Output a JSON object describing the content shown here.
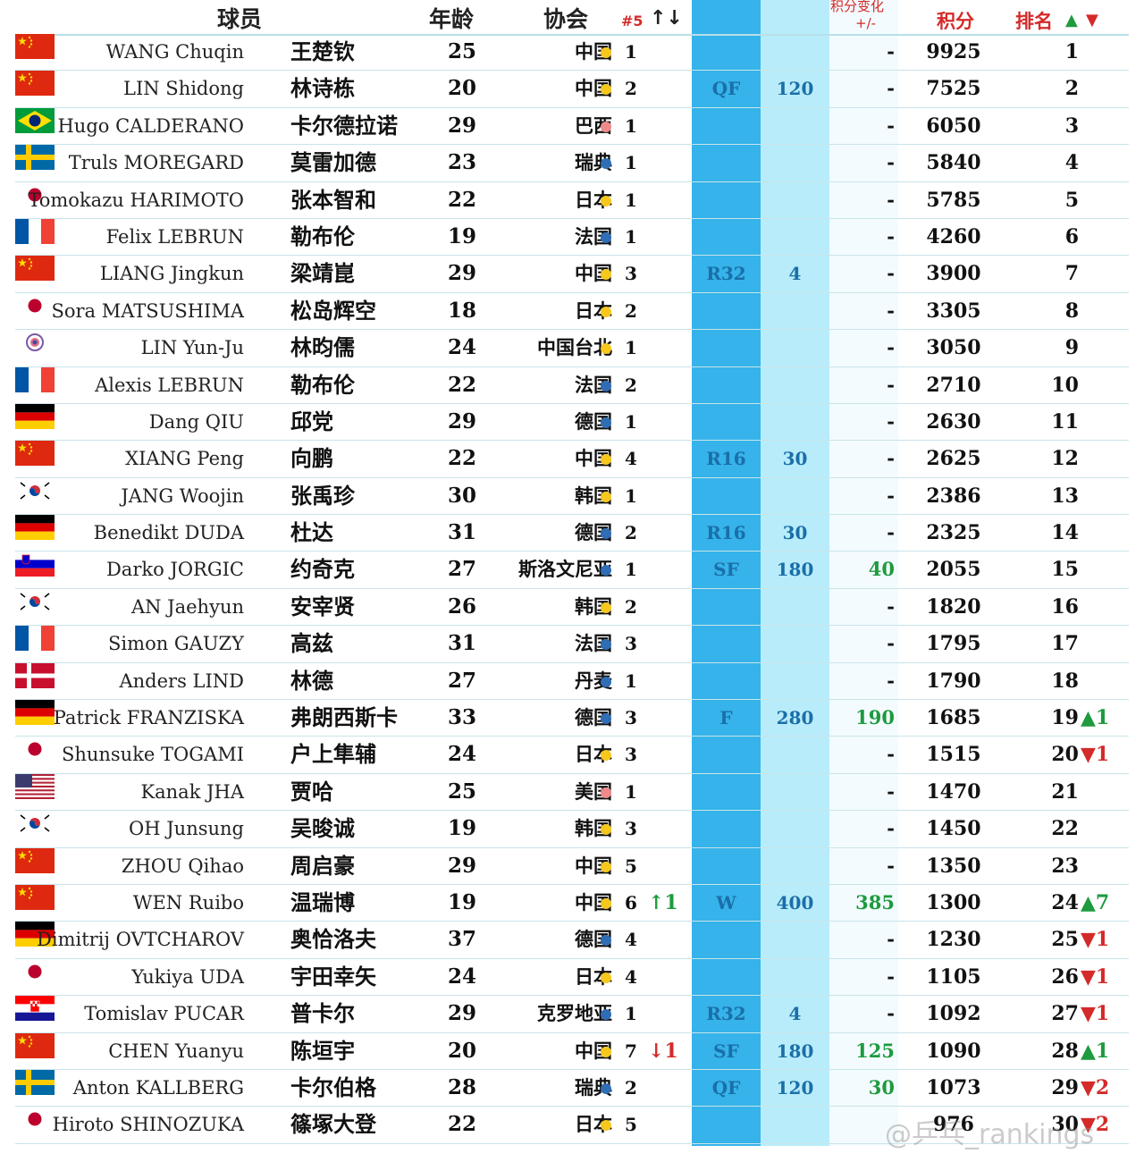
{
  "header": {
    "player": "球员",
    "age": "年龄",
    "association": "协会",
    "rank5": "#5",
    "rank5_arrows": "↑↓",
    "stage": "",
    "stage_points": "",
    "change": "积分变化",
    "change_sub": "+/-",
    "points": "积分",
    "rank": "排名",
    "rank_arrows_up": "▲",
    "rank_arrows_down": "▼"
  },
  "colors": {
    "cn": "#f6c81d",
    "jp": "#f6c81d",
    "kr": "#f6c81d",
    "tpe": "#f6c81d",
    "br": "#f08a8a",
    "us": "#f08a8a",
    "eu": "#2f6db5"
  },
  "rows": [
    {
      "en": "WANG Chuqin",
      "flag": "cn",
      "cn": "王楚钦",
      "age": "25",
      "assoc": "中国",
      "dot": "cn",
      "r5": "1",
      "m5": "",
      "stage": "",
      "pts": "",
      "chg": "-",
      "total": "9925",
      "rank": "1",
      "rm": ""
    },
    {
      "en": "LIN Shidong",
      "flag": "cn",
      "cn": "林诗栋",
      "age": "20",
      "assoc": "中国",
      "dot": "cn",
      "r5": "2",
      "m5": "",
      "stage": "QF",
      "pts": "120",
      "chg": "-",
      "total": "7525",
      "rank": "2",
      "rm": ""
    },
    {
      "en": "Hugo CALDERANO",
      "flag": "br",
      "cn": "卡尔德拉诺",
      "age": "29",
      "assoc": "巴西",
      "dot": "br",
      "r5": "1",
      "m5": "",
      "stage": "",
      "pts": "",
      "chg": "-",
      "total": "6050",
      "rank": "3",
      "rm": ""
    },
    {
      "en": "Truls MOREGARD",
      "flag": "se",
      "cn": "莫雷加德",
      "age": "23",
      "assoc": "瑞典",
      "dot": "eu",
      "r5": "1",
      "m5": "",
      "stage": "",
      "pts": "",
      "chg": "-",
      "total": "5840",
      "rank": "4",
      "rm": ""
    },
    {
      "en": "Tomokazu HARIMOTO",
      "flag": "jp",
      "cn": "张本智和",
      "age": "22",
      "assoc": "日本",
      "dot": "jp",
      "r5": "1",
      "m5": "",
      "stage": "",
      "pts": "",
      "chg": "-",
      "total": "5785",
      "rank": "5",
      "rm": ""
    },
    {
      "en": "Felix LEBRUN",
      "flag": "fr",
      "cn": "勒布伦",
      "age": "19",
      "assoc": "法国",
      "dot": "eu",
      "r5": "1",
      "m5": "",
      "stage": "",
      "pts": "",
      "chg": "-",
      "total": "4260",
      "rank": "6",
      "rm": ""
    },
    {
      "en": "LIANG Jingkun",
      "flag": "cn",
      "cn": "梁靖崑",
      "age": "29",
      "assoc": "中国",
      "dot": "cn",
      "r5": "3",
      "m5": "",
      "stage": "R32",
      "pts": "4",
      "chg": "-",
      "total": "3900",
      "rank": "7",
      "rm": ""
    },
    {
      "en": "Sora MATSUSHIMA",
      "flag": "jp",
      "cn": "松岛辉空",
      "age": "18",
      "assoc": "日本",
      "dot": "jp",
      "r5": "2",
      "m5": "",
      "stage": "",
      "pts": "",
      "chg": "-",
      "total": "3305",
      "rank": "8",
      "rm": ""
    },
    {
      "en": "LIN Yun-Ju",
      "flag": "tpe",
      "cn": "林昀儒",
      "age": "24",
      "assoc": "中国台北",
      "dot": "tpe",
      "r5": "1",
      "m5": "",
      "stage": "",
      "pts": "",
      "chg": "-",
      "total": "3050",
      "rank": "9",
      "rm": ""
    },
    {
      "en": "Alexis LEBRUN",
      "flag": "fr",
      "cn": "勒布伦",
      "age": "22",
      "assoc": "法国",
      "dot": "eu",
      "r5": "2",
      "m5": "",
      "stage": "",
      "pts": "",
      "chg": "-",
      "total": "2710",
      "rank": "10",
      "rm": ""
    },
    {
      "en": "Dang QIU",
      "flag": "de",
      "cn": "邱党",
      "age": "29",
      "assoc": "德国",
      "dot": "eu",
      "r5": "1",
      "m5": "",
      "stage": "",
      "pts": "",
      "chg": "-",
      "total": "2630",
      "rank": "11",
      "rm": ""
    },
    {
      "en": "XIANG Peng",
      "flag": "cn",
      "cn": "向鹏",
      "age": "22",
      "assoc": "中国",
      "dot": "cn",
      "r5": "4",
      "m5": "",
      "stage": "R16",
      "pts": "30",
      "chg": "-",
      "total": "2625",
      "rank": "12",
      "rm": ""
    },
    {
      "en": "JANG Woojin",
      "flag": "kr",
      "cn": "张禹珍",
      "age": "30",
      "assoc": "韩国",
      "dot": "kr",
      "r5": "1",
      "m5": "",
      "stage": "",
      "pts": "",
      "chg": "-",
      "total": "2386",
      "rank": "13",
      "rm": ""
    },
    {
      "en": "Benedikt DUDA",
      "flag": "de",
      "cn": "杜达",
      "age": "31",
      "assoc": "德国",
      "dot": "eu",
      "r5": "2",
      "m5": "",
      "stage": "R16",
      "pts": "30",
      "chg": "-",
      "total": "2325",
      "rank": "14",
      "rm": ""
    },
    {
      "en": "Darko JORGIC",
      "flag": "si",
      "cn": "约奇克",
      "age": "27",
      "assoc": "斯洛文尼亚",
      "dot": "eu",
      "r5": "1",
      "m5": "",
      "stage": "SF",
      "pts": "180",
      "chg": "40",
      "total": "2055",
      "rank": "15",
      "rm": ""
    },
    {
      "en": "AN Jaehyun",
      "flag": "kr",
      "cn": "安宰贤",
      "age": "26",
      "assoc": "韩国",
      "dot": "kr",
      "r5": "2",
      "m5": "",
      "stage": "",
      "pts": "",
      "chg": "-",
      "total": "1820",
      "rank": "16",
      "rm": ""
    },
    {
      "en": "Simon GAUZY",
      "flag": "fr",
      "cn": "高兹",
      "age": "31",
      "assoc": "法国",
      "dot": "eu",
      "r5": "3",
      "m5": "",
      "stage": "",
      "pts": "",
      "chg": "-",
      "total": "1795",
      "rank": "17",
      "rm": ""
    },
    {
      "en": "Anders LIND",
      "flag": "dk",
      "cn": "林德",
      "age": "27",
      "assoc": "丹麦",
      "dot": "eu",
      "r5": "1",
      "m5": "",
      "stage": "",
      "pts": "",
      "chg": "-",
      "total": "1790",
      "rank": "18",
      "rm": ""
    },
    {
      "en": "Patrick FRANZISKA",
      "flag": "de",
      "cn": "弗朗西斯卡",
      "age": "33",
      "assoc": "德国",
      "dot": "eu",
      "r5": "3",
      "m5": "",
      "stage": "F",
      "pts": "280",
      "chg": "190",
      "total": "1685",
      "rank": "19",
      "rm": "▲1"
    },
    {
      "en": "Shunsuke TOGAMI",
      "flag": "jp",
      "cn": "户上隼辅",
      "age": "24",
      "assoc": "日本",
      "dot": "jp",
      "r5": "3",
      "m5": "",
      "stage": "",
      "pts": "",
      "chg": "-",
      "total": "1515",
      "rank": "20",
      "rm": "▼1"
    },
    {
      "en": "Kanak JHA",
      "flag": "us",
      "cn": "贾哈",
      "age": "25",
      "assoc": "美国",
      "dot": "us",
      "r5": "1",
      "m5": "",
      "stage": "",
      "pts": "",
      "chg": "-",
      "total": "1470",
      "rank": "21",
      "rm": ""
    },
    {
      "en": "OH Junsung",
      "flag": "kr",
      "cn": "吴晙诚",
      "age": "19",
      "assoc": "韩国",
      "dot": "kr",
      "r5": "3",
      "m5": "",
      "stage": "",
      "pts": "",
      "chg": "-",
      "total": "1450",
      "rank": "22",
      "rm": ""
    },
    {
      "en": "ZHOU Qihao",
      "flag": "cn",
      "cn": "周启豪",
      "age": "29",
      "assoc": "中国",
      "dot": "cn",
      "r5": "5",
      "m5": "",
      "stage": "",
      "pts": "",
      "chg": "-",
      "total": "1350",
      "rank": "23",
      "rm": ""
    },
    {
      "en": "WEN Ruibo",
      "flag": "cn",
      "cn": "温瑞博",
      "age": "19",
      "assoc": "中国",
      "dot": "cn",
      "r5": "6",
      "m5": "↑1",
      "stage": "W",
      "pts": "400",
      "chg": "385",
      "total": "1300",
      "rank": "24",
      "rm": "▲7"
    },
    {
      "en": "Dimitrij OVTCHAROV",
      "flag": "de",
      "cn": "奥恰洛夫",
      "age": "37",
      "assoc": "德国",
      "dot": "eu",
      "r5": "4",
      "m5": "",
      "stage": "",
      "pts": "",
      "chg": "-",
      "total": "1230",
      "rank": "25",
      "rm": "▼1"
    },
    {
      "en": "Yukiya UDA",
      "flag": "jp",
      "cn": "宇田幸矢",
      "age": "24",
      "assoc": "日本",
      "dot": "jp",
      "r5": "4",
      "m5": "",
      "stage": "",
      "pts": "",
      "chg": "-",
      "total": "1105",
      "rank": "26",
      "rm": "▼1"
    },
    {
      "en": "Tomislav PUCAR",
      "flag": "hr",
      "cn": "普卡尔",
      "age": "29",
      "assoc": "克罗地亚",
      "dot": "eu",
      "r5": "1",
      "m5": "",
      "stage": "R32",
      "pts": "4",
      "chg": "-",
      "total": "1092",
      "rank": "27",
      "rm": "▼1"
    },
    {
      "en": "CHEN Yuanyu",
      "flag": "cn",
      "cn": "陈垣宇",
      "age": "20",
      "assoc": "中国",
      "dot": "cn",
      "r5": "7",
      "m5": "↓1",
      "stage": "SF",
      "pts": "180",
      "chg": "125",
      "total": "1090",
      "rank": "28",
      "rm": "▲1"
    },
    {
      "en": "Anton KALLBERG",
      "flag": "se",
      "cn": "卡尔伯格",
      "age": "28",
      "assoc": "瑞典",
      "dot": "eu",
      "r5": "2",
      "m5": "",
      "stage": "QF",
      "pts": "120",
      "chg": "30",
      "total": "1073",
      "rank": "29",
      "rm": "▼2"
    },
    {
      "en": "Hiroto SHINOZUKA",
      "flag": "jp",
      "cn": "篠塚大登",
      "age": "22",
      "assoc": "日本",
      "dot": "jp",
      "r5": "5",
      "m5": "",
      "stage": "",
      "pts": "",
      "chg": "",
      "total": "976",
      "rank": "30",
      "rm": "▼2"
    }
  ],
  "watermark": "@乒乓_rankings"
}
